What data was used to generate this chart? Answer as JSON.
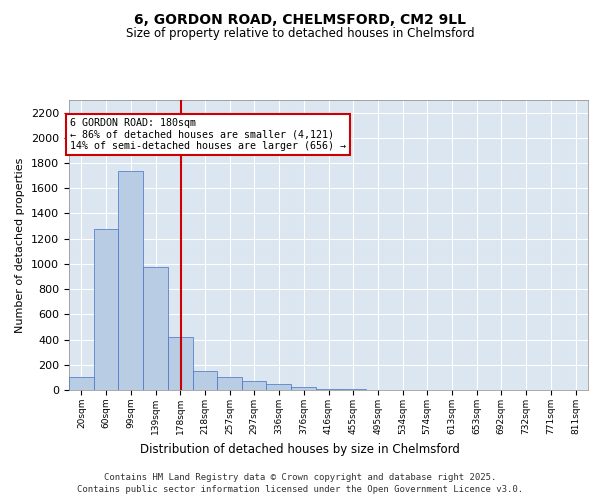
{
  "title_line1": "6, GORDON ROAD, CHELMSFORD, CM2 9LL",
  "title_line2": "Size of property relative to detached houses in Chelmsford",
  "xlabel": "Distribution of detached houses by size in Chelmsford",
  "ylabel": "Number of detached properties",
  "footer_line1": "Contains HM Land Registry data © Crown copyright and database right 2025.",
  "footer_line2": "Contains public sector information licensed under the Open Government Licence v3.0.",
  "annotation_title": "6 GORDON ROAD: 180sqm",
  "annotation_line1": "← 86% of detached houses are smaller (4,121)",
  "annotation_line2": "14% of semi-detached houses are larger (656) →",
  "bar_color": "#b8cce4",
  "bar_edge_color": "#4472c4",
  "vline_color": "#cc0000",
  "vline_x": 180,
  "background_color": "#dce6f1",
  "categories": [
    "20sqm",
    "60sqm",
    "99sqm",
    "139sqm",
    "178sqm",
    "218sqm",
    "257sqm",
    "297sqm",
    "336sqm",
    "376sqm",
    "416sqm",
    "455sqm",
    "495sqm",
    "534sqm",
    "574sqm",
    "613sqm",
    "653sqm",
    "692sqm",
    "732sqm",
    "771sqm",
    "811sqm"
  ],
  "bin_edges": [
    0,
    40,
    79,
    119,
    158,
    198,
    237,
    277,
    316,
    356,
    396,
    435,
    475,
    514,
    554,
    593,
    633,
    672,
    712,
    751,
    791,
    831
  ],
  "values": [
    100,
    1280,
    1740,
    975,
    420,
    150,
    100,
    75,
    50,
    20,
    10,
    5,
    3,
    2,
    1,
    1,
    1,
    0,
    0,
    0,
    0
  ],
  "ylim": [
    0,
    2300
  ],
  "yticks": [
    0,
    200,
    400,
    600,
    800,
    1000,
    1200,
    1400,
    1600,
    1800,
    2000,
    2200
  ]
}
